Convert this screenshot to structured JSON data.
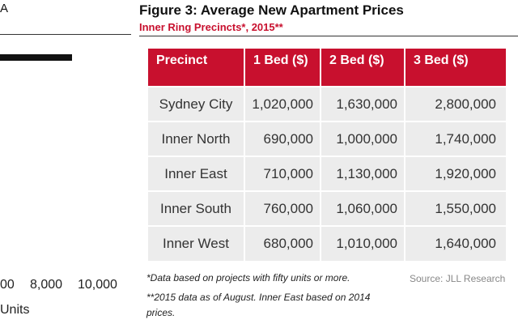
{
  "left_panel": {
    "letter": "A",
    "tick_labels": [
      "00",
      "8,000",
      "10,000"
    ],
    "axis_label": "Units",
    "bar_color": "#111111"
  },
  "figure": {
    "title": "Figure 3: Average New Apartment Prices",
    "subtitle": "Inner Ring Precincts*, 2015**",
    "accent_color": "#c8102e",
    "table": {
      "headers": [
        "Precinct",
        "1 Bed ($)",
        "2 Bed ($)",
        "3 Bed ($)"
      ],
      "rows": [
        [
          "Sydney City",
          "1,020,000",
          "1,630,000",
          "2,800,000"
        ],
        [
          "Inner North",
          "690,000",
          "1,000,000",
          "1,740,000"
        ],
        [
          "Inner East",
          "710,000",
          "1,130,000",
          "1,920,000"
        ],
        [
          "Inner South",
          "760,000",
          "1,060,000",
          "1,550,000"
        ],
        [
          "Inner West",
          "680,000",
          "1,010,000",
          "1,640,000"
        ]
      ]
    },
    "footnote_1": "*Data based on projects with fifty units or more.",
    "footnote_2": "**2015 data as of August. Inner East based on 2014 prices.",
    "source": "Source: JLL Research"
  }
}
